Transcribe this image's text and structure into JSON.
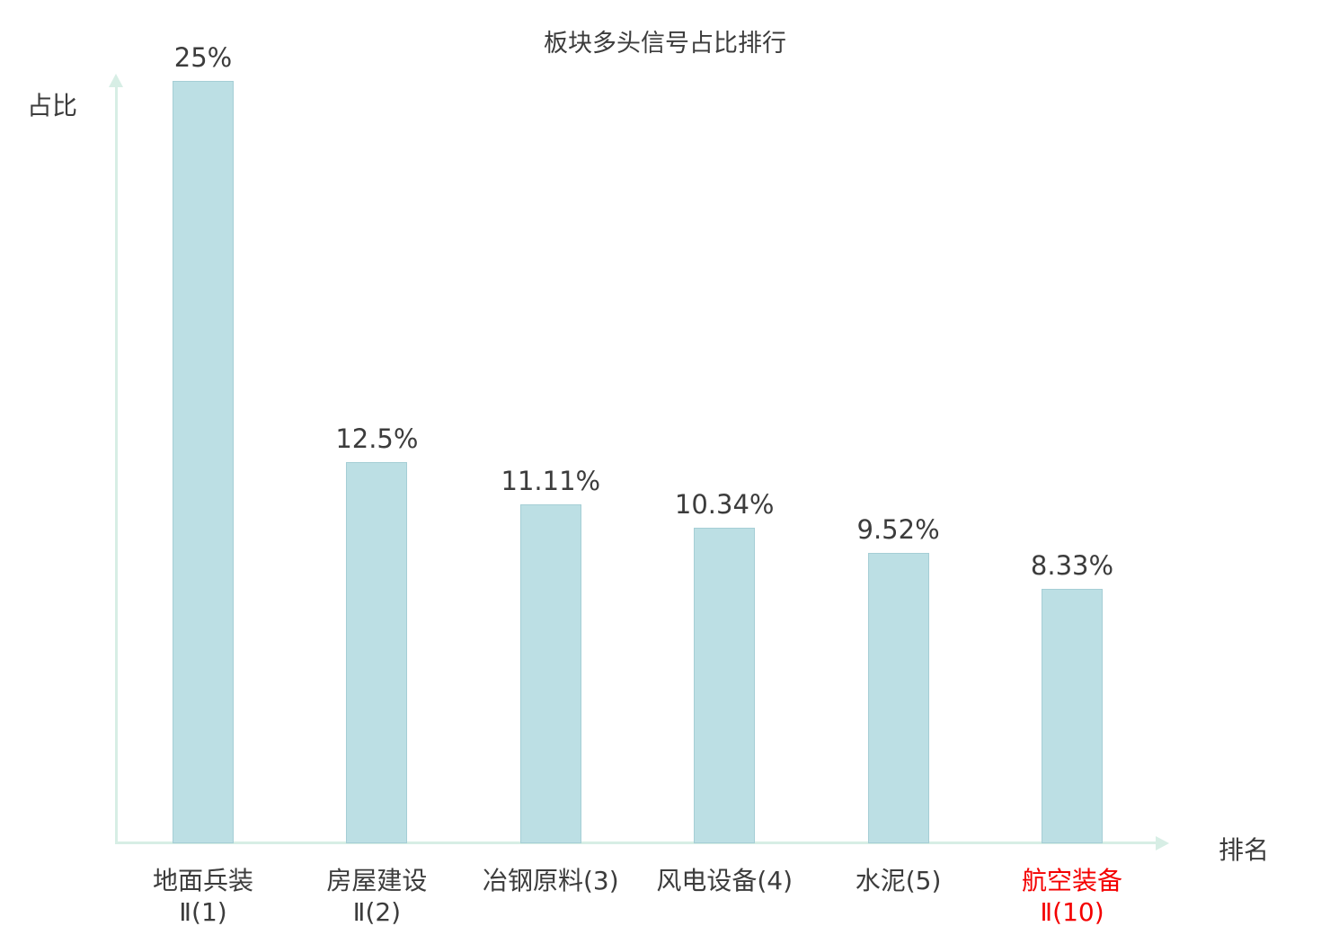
{
  "title": "板块多头信号占比排行",
  "axis": {
    "y_label": "占比",
    "x_label": "排名"
  },
  "chart_data": {
    "type": "bar",
    "title": "板块多头信号占比排行",
    "xlabel": "排名",
    "ylabel": "占比",
    "categories": [
      "地面兵装Ⅱ(1)",
      "房屋建设Ⅱ(2)",
      "冶钢原料(3)",
      "风电设备(4)",
      "水泥(5)",
      "航空装备Ⅱ(10)"
    ],
    "category_lines": [
      [
        "地面兵装",
        "Ⅱ(1)"
      ],
      [
        "房屋建设",
        "Ⅱ(2)"
      ],
      [
        "冶钢原料(3)"
      ],
      [
        "风电设备(4)"
      ],
      [
        "水泥(5)"
      ],
      [
        "航空装备",
        "Ⅱ(10)"
      ]
    ],
    "values": [
      25,
      12.5,
      11.11,
      10.34,
      9.52,
      8.33
    ],
    "value_labels": [
      "25%",
      "12.5%",
      "11.11%",
      "10.34%",
      "9.52%",
      "8.33%"
    ],
    "ylim": [
      0,
      25
    ],
    "grid": false,
    "legend": "none",
    "highlight_index": 5,
    "colors": {
      "bar_fill": "#bcdfe4",
      "bar_border": "#a5ced5",
      "axis": "#d7eee5",
      "text": "#3c3c3c",
      "highlight": "#f40000"
    }
  }
}
